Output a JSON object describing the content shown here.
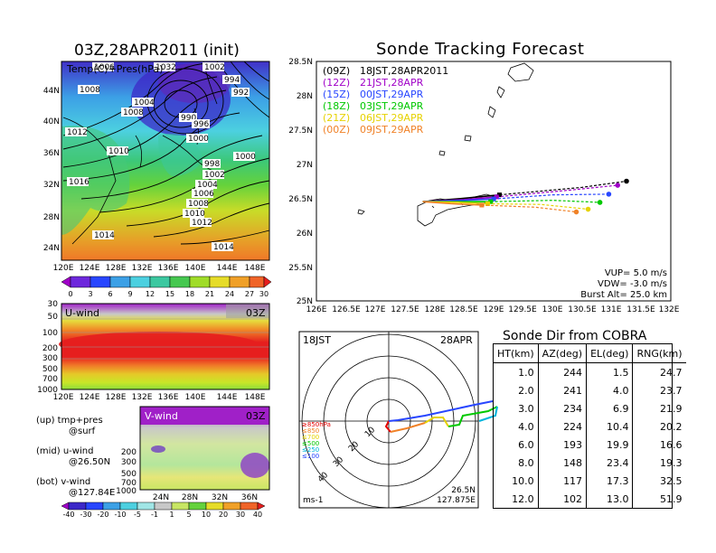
{
  "map_panel": {
    "title": "03Z,28APR2011 (init)",
    "label": "Temp(C)+Pres(hPa)",
    "lat_ticks": [
      "44N",
      "40N",
      "36N",
      "32N",
      "28N",
      "24N"
    ],
    "lon_ticks": [
      "120E",
      "124E",
      "128E",
      "132E",
      "136E",
      "140E",
      "144E",
      "148E"
    ],
    "pressure_labels": [
      "1006",
      "1032",
      "1002",
      "1008",
      "994",
      "992",
      "1004",
      "990",
      "996",
      "1008",
      "1012",
      "1000",
      "1010",
      "998",
      "1000",
      "1016",
      "1002",
      "1004",
      "1006",
      "1008",
      "1010",
      "1012",
      "1014",
      "1014"
    ],
    "colorbar_ticks": [
      "0",
      "3",
      "6",
      "9",
      "12",
      "15",
      "18",
      "21",
      "24",
      "27",
      "30"
    ]
  },
  "uwind_panel": {
    "label": "U-wind",
    "time": "03Z",
    "p_ticks": [
      "30",
      "50",
      "100",
      "200",
      "300",
      "500",
      "700",
      "1000"
    ],
    "lon_ticks": [
      "120E",
      "124E",
      "128E",
      "132E",
      "136E",
      "140E",
      "144E",
      "148E"
    ]
  },
  "vwind_panel": {
    "label": "V-wind",
    "time": "03Z",
    "p_ticks": [
      "200",
      "300",
      "500",
      "700",
      "1000"
    ],
    "lat_ticks": [
      "24N",
      "28N",
      "32N",
      "36N"
    ],
    "colorbar_ticks": [
      "-40",
      "-30",
      "-20",
      "-10",
      "-5",
      "-1",
      "1",
      "5",
      "10",
      "20",
      "30",
      "40"
    ]
  },
  "legend_notes": [
    {
      "top": "(up) tmp+pres",
      "bottom": "@surf"
    },
    {
      "top": "(mid) u-wind",
      "bottom": "@26.50N"
    },
    {
      "top": "(bot) v-wind",
      "bottom": "@127.84E"
    }
  ],
  "tracking": {
    "title": "Sonde Tracking Forecast",
    "lat_ticks": [
      "28.5N",
      "28N",
      "27.5N",
      "27N",
      "26.5N",
      "26N",
      "25.5N",
      "25N"
    ],
    "lon_ticks": [
      "126E",
      "126.5E",
      "127E",
      "127.5E",
      "128E",
      "128.5E",
      "129E",
      "129.5E",
      "130E",
      "130.5E",
      "131E",
      "131.5E",
      "132E"
    ],
    "legend": [
      {
        "code": "(09Z)",
        "time": "18JST,28APR2011",
        "color": "#000000"
      },
      {
        "code": "(12Z)",
        "time": "21JST,28APR",
        "color": "#a000c8"
      },
      {
        "code": "(15Z)",
        "time": "00JST,29APR",
        "color": "#2846ff"
      },
      {
        "code": "(18Z)",
        "time": "03JST,29APR",
        "color": "#00c800"
      },
      {
        "code": "(21Z)",
        "time": "06JST,29APR",
        "color": "#e6d200"
      },
      {
        "code": "(00Z)",
        "time": "09JST,29APR",
        "color": "#f08228"
      }
    ],
    "params": [
      "VUP= 5.0 m/s",
      "VDW= -3.0 m/s",
      "Burst Alt= 25.0 km"
    ]
  },
  "polar": {
    "label_left": "18JST",
    "label_right": "28APR",
    "unit": "ms-1",
    "loc_lat": "26.5N",
    "loc_lon": "127.875E",
    "ring_labels": [
      "10",
      "20",
      "30",
      "40"
    ],
    "level_legend": [
      {
        "label": "≥850hPa",
        "color": "#e60000"
      },
      {
        "label": "≤850",
        "color": "#f08228"
      },
      {
        "label": "≤700",
        "color": "#e6d200"
      },
      {
        "label": "≤500",
        "color": "#00c800"
      },
      {
        "label": "≤250",
        "color": "#00b4dc"
      },
      {
        "label": "≤100",
        "color": "#2846ff"
      }
    ]
  },
  "sonde_table": {
    "title": "Sonde Dir from COBRA",
    "headers": [
      "HT(km)",
      "AZ(deg)",
      "EL(deg)",
      "RNG(km)"
    ],
    "rows": [
      [
        "1.0",
        "244",
        "1.5",
        "24.7"
      ],
      [
        "2.0",
        "241",
        "4.0",
        "23.7"
      ],
      [
        "3.0",
        "234",
        "6.9",
        "21.9"
      ],
      [
        "4.0",
        "224",
        "10.4",
        "20.2"
      ],
      [
        "6.0",
        "193",
        "19.9",
        "16.6"
      ],
      [
        "8.0",
        "148",
        "23.4",
        "19.3"
      ],
      [
        "10.0",
        "117",
        "17.3",
        "32.5"
      ],
      [
        "12.0",
        "102",
        "13.0",
        "51.9"
      ]
    ]
  },
  "chart_data": [
    {
      "type": "heatmap",
      "title": "03Z,28APR2011 (init)",
      "subtitle": "Temp(C)+Pres(hPa)",
      "xlabel": "",
      "ylabel": "",
      "xlim": [
        120,
        150
      ],
      "ylim": [
        22,
        48
      ],
      "colorbar": [
        0,
        3,
        6,
        9,
        12,
        15,
        18,
        21,
        24,
        27,
        30
      ]
    },
    {
      "type": "heatmap",
      "title": "U-wind",
      "xlabel": "",
      "ylabel": "",
      "xlim": [
        120,
        150
      ],
      "y_levels_hPa": [
        30,
        50,
        100,
        200,
        300,
        500,
        700,
        1000
      ]
    },
    {
      "type": "heatmap",
      "title": "V-wind",
      "xlabel": "",
      "ylabel": "",
      "xlim": [
        22,
        39
      ],
      "y_levels_hPa": [
        200,
        300,
        500,
        700,
        1000
      ],
      "colorbar": [
        -40,
        -30,
        -20,
        -10,
        -5,
        -1,
        1,
        5,
        10,
        20,
        30,
        40
      ]
    },
    {
      "type": "line",
      "title": "Sonde Tracking Forecast",
      "xlim": [
        126,
        132
      ],
      "ylim": [
        25,
        28.5
      ],
      "series": [
        {
          "name": "18JST,28APR2011",
          "x": [
            127.8,
            128.5,
            129.1
          ],
          "y": [
            26.45,
            26.5,
            26.55
          ],
          "x2": [
            129.1,
            130.5,
            131.25
          ],
          "y2": [
            26.55,
            26.66,
            26.75
          ]
        },
        {
          "name": "21JST,28APR",
          "x": [
            127.8,
            128.5,
            129.05
          ],
          "y": [
            26.45,
            26.48,
            26.52
          ],
          "x2": [
            129.05,
            130.3,
            131.1
          ],
          "y2": [
            26.52,
            26.62,
            26.69
          ]
        },
        {
          "name": "00JST,29APR",
          "x": [
            127.8,
            128.5,
            129.0
          ],
          "y": [
            26.45,
            26.47,
            26.49
          ],
          "x2": [
            129.0,
            130.0,
            130.95
          ],
          "y2": [
            26.49,
            26.55,
            26.56
          ]
        },
        {
          "name": "03JST,29APR",
          "x": [
            127.8,
            128.4,
            128.95
          ],
          "y": [
            26.45,
            26.45,
            26.45
          ],
          "x2": [
            128.95,
            130.0,
            130.8
          ],
          "y2": [
            26.45,
            26.47,
            26.44
          ]
        },
        {
          "name": "06JST,29APR",
          "x": [
            127.8,
            128.4,
            128.9
          ],
          "y": [
            26.45,
            26.44,
            26.42
          ],
          "x2": [
            128.9,
            129.8,
            130.6
          ],
          "y2": [
            26.42,
            26.41,
            26.34
          ]
        },
        {
          "name": "09JST,29APR",
          "x": [
            127.8,
            128.3,
            128.8
          ],
          "y": [
            26.45,
            26.42,
            26.4
          ],
          "x2": [
            128.8,
            129.7,
            130.4
          ],
          "y2": [
            26.4,
            26.37,
            26.3
          ]
        }
      ]
    }
  ]
}
